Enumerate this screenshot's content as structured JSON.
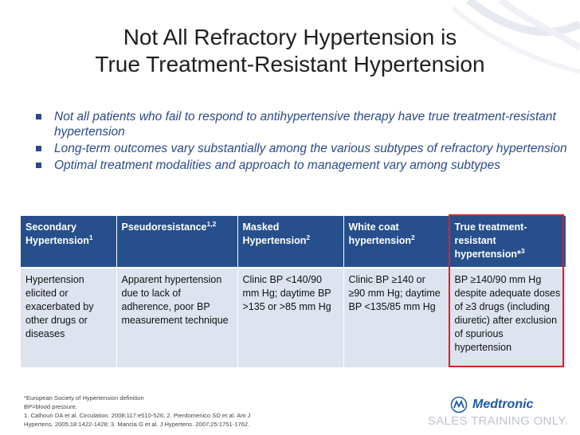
{
  "title": {
    "line1": "Not All Refractory Hypertension is",
    "line2": "True Treatment-Resistant Hypertension"
  },
  "bullets": [
    "Not all patients who fail to respond to antihypertensive therapy have true treatment-resistant hypertension",
    "Long-term outcomes vary substantially among the various subtypes of refractory hypertension",
    "Optimal treatment modalities and approach to management vary among subtypes"
  ],
  "table": {
    "headers": [
      {
        "text": "Secondary Hypertension",
        "sup": "1"
      },
      {
        "text": "Pseudoresistance",
        "sup": "1,2"
      },
      {
        "text": "Masked Hypertension",
        "sup": "2"
      },
      {
        "text": "White coat hypertension",
        "sup": "2"
      },
      {
        "text": "True treatment-resistant hypertension*",
        "sup": "3"
      }
    ],
    "row": [
      "Hypertension elicited or exacerbated by other drugs or diseases",
      "Apparent hypertension due to lack of adherence, poor BP measurement technique",
      "Clinic BP <140/90 mm Hg; daytime BP >135 or >85 mm Hg",
      "Clinic BP ≥140 or ≥90 mm Hg; daytime BP <135/85 mm Hg",
      "BP ≥140/90 mm Hg despite adequate doses of ≥3 drugs (including diuretic) after exclusion of spurious hypertension"
    ]
  },
  "footnotes": [
    "*European Society of Hypertension definition",
    "BP=blood pressure.",
    "1. Calhoun DA et al. Circulation. 2008;117:e510-526; 2. Pierdomenico SD et al. Am J",
    "Hypertens. 2005;18:1422-1428; 3. Mancia G et al. J Hypertens. 2007;25:1751-1762."
  ],
  "brand": {
    "logo_text": "Medtronic",
    "notice": "SALES TRAINING ONLY.",
    "accent_color": "#264f8b",
    "highlight_color": "#e02020"
  }
}
